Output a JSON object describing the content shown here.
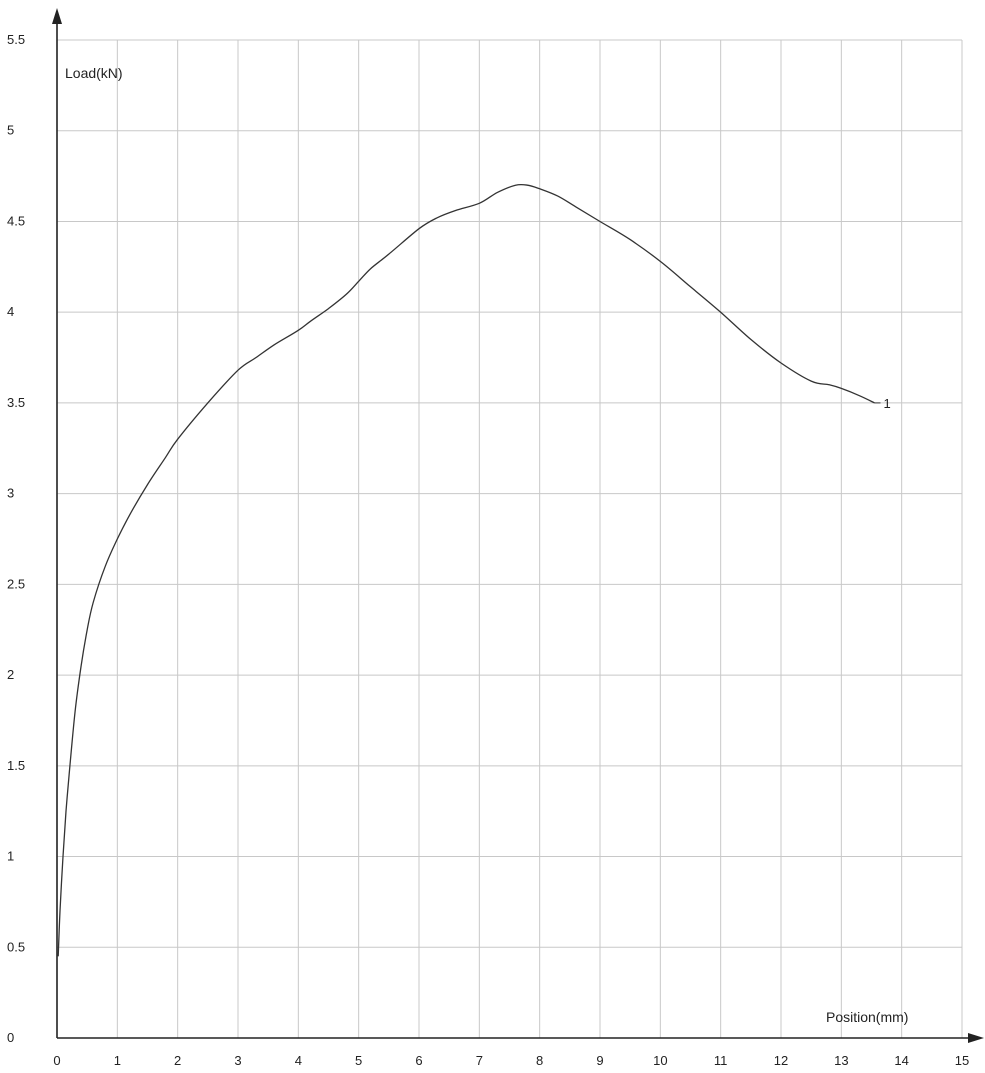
{
  "chart_data": {
    "type": "line",
    "title": "",
    "xlabel": "Position(mm)",
    "ylabel": "Load(kN)",
    "xlim": [
      0,
      15
    ],
    "ylim": [
      0,
      5.5
    ],
    "xticks": [
      0,
      1,
      2,
      3,
      4,
      5,
      6,
      7,
      8,
      9,
      10,
      11,
      12,
      13,
      14,
      15
    ],
    "yticks": [
      0,
      0.5,
      1,
      1.5,
      2,
      2.5,
      3,
      3.5,
      4,
      4.5,
      5,
      5.5
    ],
    "grid": true,
    "colors": {
      "grid": "#c8c8c8",
      "axis": "#222222",
      "line": "#333333",
      "text": "#222222"
    },
    "series": [
      {
        "name": "1",
        "x": [
          0.02,
          0.05,
          0.1,
          0.15,
          0.2,
          0.3,
          0.4,
          0.5,
          0.6,
          0.8,
          1.0,
          1.2,
          1.5,
          1.8,
          2.0,
          2.5,
          3.0,
          3.3,
          3.6,
          4.0,
          4.2,
          4.5,
          4.8,
          5.0,
          5.2,
          5.5,
          6.0,
          6.3,
          6.6,
          7.0,
          7.3,
          7.6,
          7.8,
          8.0,
          8.3,
          8.6,
          9.0,
          9.5,
          10.0,
          10.5,
          11.0,
          11.5,
          12.0,
          12.5,
          12.8,
          13.0,
          13.3,
          13.55
        ],
        "y": [
          0.45,
          0.7,
          1.0,
          1.25,
          1.45,
          1.8,
          2.05,
          2.25,
          2.4,
          2.6,
          2.75,
          2.88,
          3.05,
          3.2,
          3.3,
          3.5,
          3.68,
          3.75,
          3.82,
          3.9,
          3.95,
          4.02,
          4.1,
          4.17,
          4.24,
          4.32,
          4.46,
          4.52,
          4.56,
          4.6,
          4.66,
          4.7,
          4.7,
          4.68,
          4.64,
          4.58,
          4.5,
          4.4,
          4.28,
          4.14,
          4.0,
          3.85,
          3.72,
          3.62,
          3.6,
          3.58,
          3.54,
          3.5
        ]
      }
    ]
  }
}
